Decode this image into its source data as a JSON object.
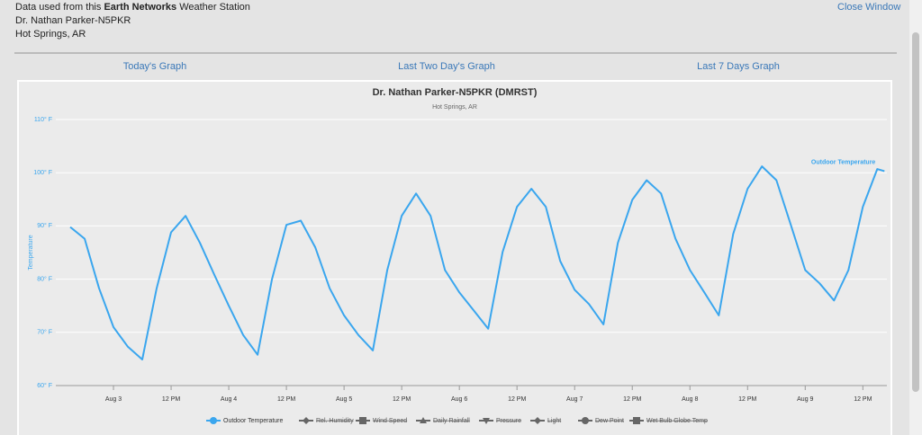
{
  "header": {
    "line1": {
      "before": "Data used from this ",
      "bold": "Earth Networks",
      "after": " Weather Station"
    },
    "station": "Dr. Nathan Parker-N5PKR",
    "location": "Hot Springs, AR",
    "close": "Close Window"
  },
  "nav": [
    "Today's Graph",
    "Last Two Day's Graph",
    "Last 7 Days Graph"
  ],
  "chart_data": {
    "type": "line",
    "title": "Dr. Nathan Parker-N5PKR (DMRST)",
    "subtitle": "Hot Springs, AR",
    "y_label": "Temperature",
    "x": [
      15,
      18,
      21,
      24,
      27,
      30,
      33,
      36,
      39,
      42,
      45,
      48,
      51,
      54,
      57,
      60,
      63,
      66,
      69,
      72,
      75,
      78,
      81,
      84,
      87,
      90,
      93,
      96,
      99,
      102,
      105,
      108,
      111,
      114,
      117,
      120,
      123,
      126,
      129,
      132,
      135,
      138,
      141,
      144,
      147,
      150,
      153,
      156,
      159,
      162,
      165,
      168,
      171,
      174,
      177,
      180,
      183,
      184.5
    ],
    "series": [
      {
        "name": "Outdoor Temperature",
        "color": "#3aa6ee",
        "values": [
          89.8,
          87.6,
          78.3,
          71,
          67.3,
          64.9,
          78.3,
          88.8,
          91.9,
          86.8,
          80.8,
          75,
          69.5,
          65.8,
          80,
          90.2,
          91,
          86,
          78.3,
          73.2,
          69.5,
          66.6,
          81.7,
          91.9,
          96.1,
          91.9,
          81.7,
          77.5,
          74.1,
          70.7,
          85.1,
          93.6,
          97,
          93.6,
          83.4,
          78,
          75.3,
          71.5,
          86.8,
          94.9,
          98.6,
          96.1,
          87.6,
          81.7,
          77.5,
          73.2,
          88.5,
          97,
          101.2,
          98.6,
          90.2,
          81.7,
          79.2,
          76,
          81.7,
          93.6,
          100.7,
          100.3
        ]
      }
    ],
    "legend_hidden": [
      "Rel. Humidity",
      "Wind Speed",
      "Daily Rainfall",
      "Pressure",
      "Light",
      "Dew Point",
      "Wet Bulb Globe Temp"
    ],
    "xlim": [
      12,
      185
    ],
    "xticks": [
      {
        "value": 24,
        "label": "Aug 3"
      },
      {
        "value": 36,
        "label": "12 PM"
      },
      {
        "value": 48,
        "label": "Aug 4"
      },
      {
        "value": 60,
        "label": "12 PM"
      },
      {
        "value": 72,
        "label": "Aug 5"
      },
      {
        "value": 84,
        "label": "12 PM"
      },
      {
        "value": 96,
        "label": "Aug 6"
      },
      {
        "value": 108,
        "label": "12 PM"
      },
      {
        "value": 120,
        "label": "Aug 7"
      },
      {
        "value": 132,
        "label": "12 PM"
      },
      {
        "value": 144,
        "label": "Aug 8"
      },
      {
        "value": 156,
        "label": "12 PM"
      },
      {
        "value": 168,
        "label": "Aug 9"
      },
      {
        "value": 180,
        "label": "12 PM"
      }
    ],
    "ylim": [
      60,
      110
    ],
    "yticks": [
      {
        "value": 60,
        "label": "60° F"
      },
      {
        "value": 70,
        "label": "70° F"
      },
      {
        "value": 80,
        "label": "80° F"
      },
      {
        "value": 90,
        "label": "90° F"
      },
      {
        "value": 100,
        "label": "100° F"
      },
      {
        "value": 110,
        "label": "110° F"
      }
    ],
    "grid": true
  }
}
